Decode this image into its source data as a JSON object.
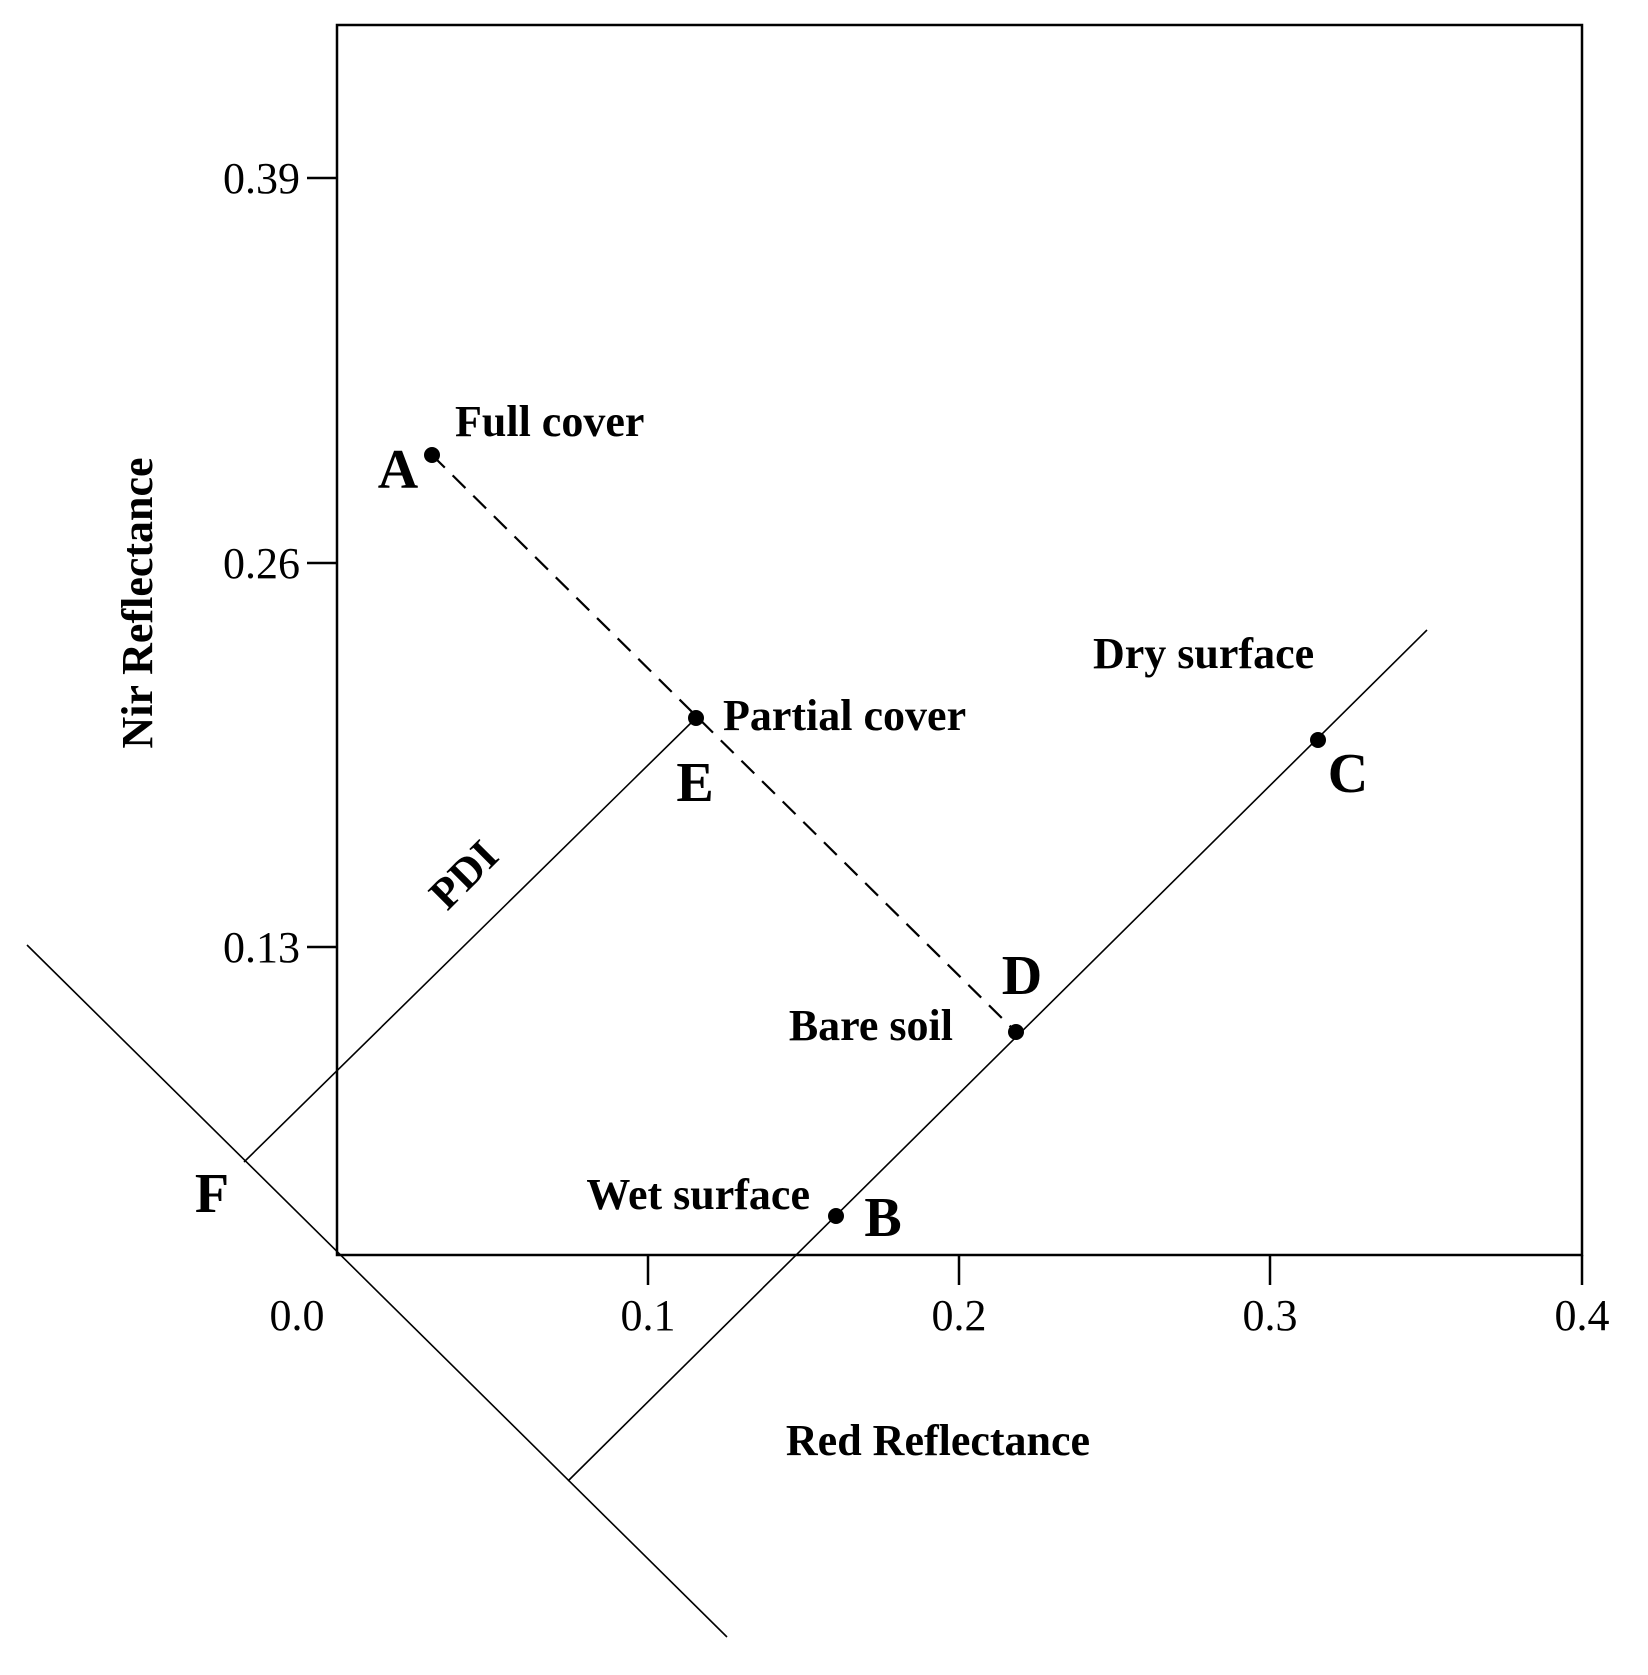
{
  "axes": {
    "x_title": "Red Reflectance",
    "y_title": "Nir Reflectance",
    "x_ticks": [
      "0.0",
      "0.1",
      "0.2",
      "0.3",
      "0.4"
    ],
    "y_ticks": [
      "0.39",
      "0.26",
      "0.13"
    ]
  },
  "points": {
    "A": {
      "letter": "A",
      "label": "Full cover"
    },
    "B": {
      "letter": "B",
      "label": "Wet surface"
    },
    "C": {
      "letter": "C",
      "label": "Dry surface"
    },
    "D": {
      "letter": "D",
      "label": "Bare soil"
    },
    "E": {
      "letter": "E",
      "label": "Partial cover"
    },
    "F": {
      "letter": "F"
    }
  },
  "lines": {
    "pdi_label": "PDI"
  },
  "colors": {
    "ink": "#000000",
    "background": "#ffffff"
  }
}
